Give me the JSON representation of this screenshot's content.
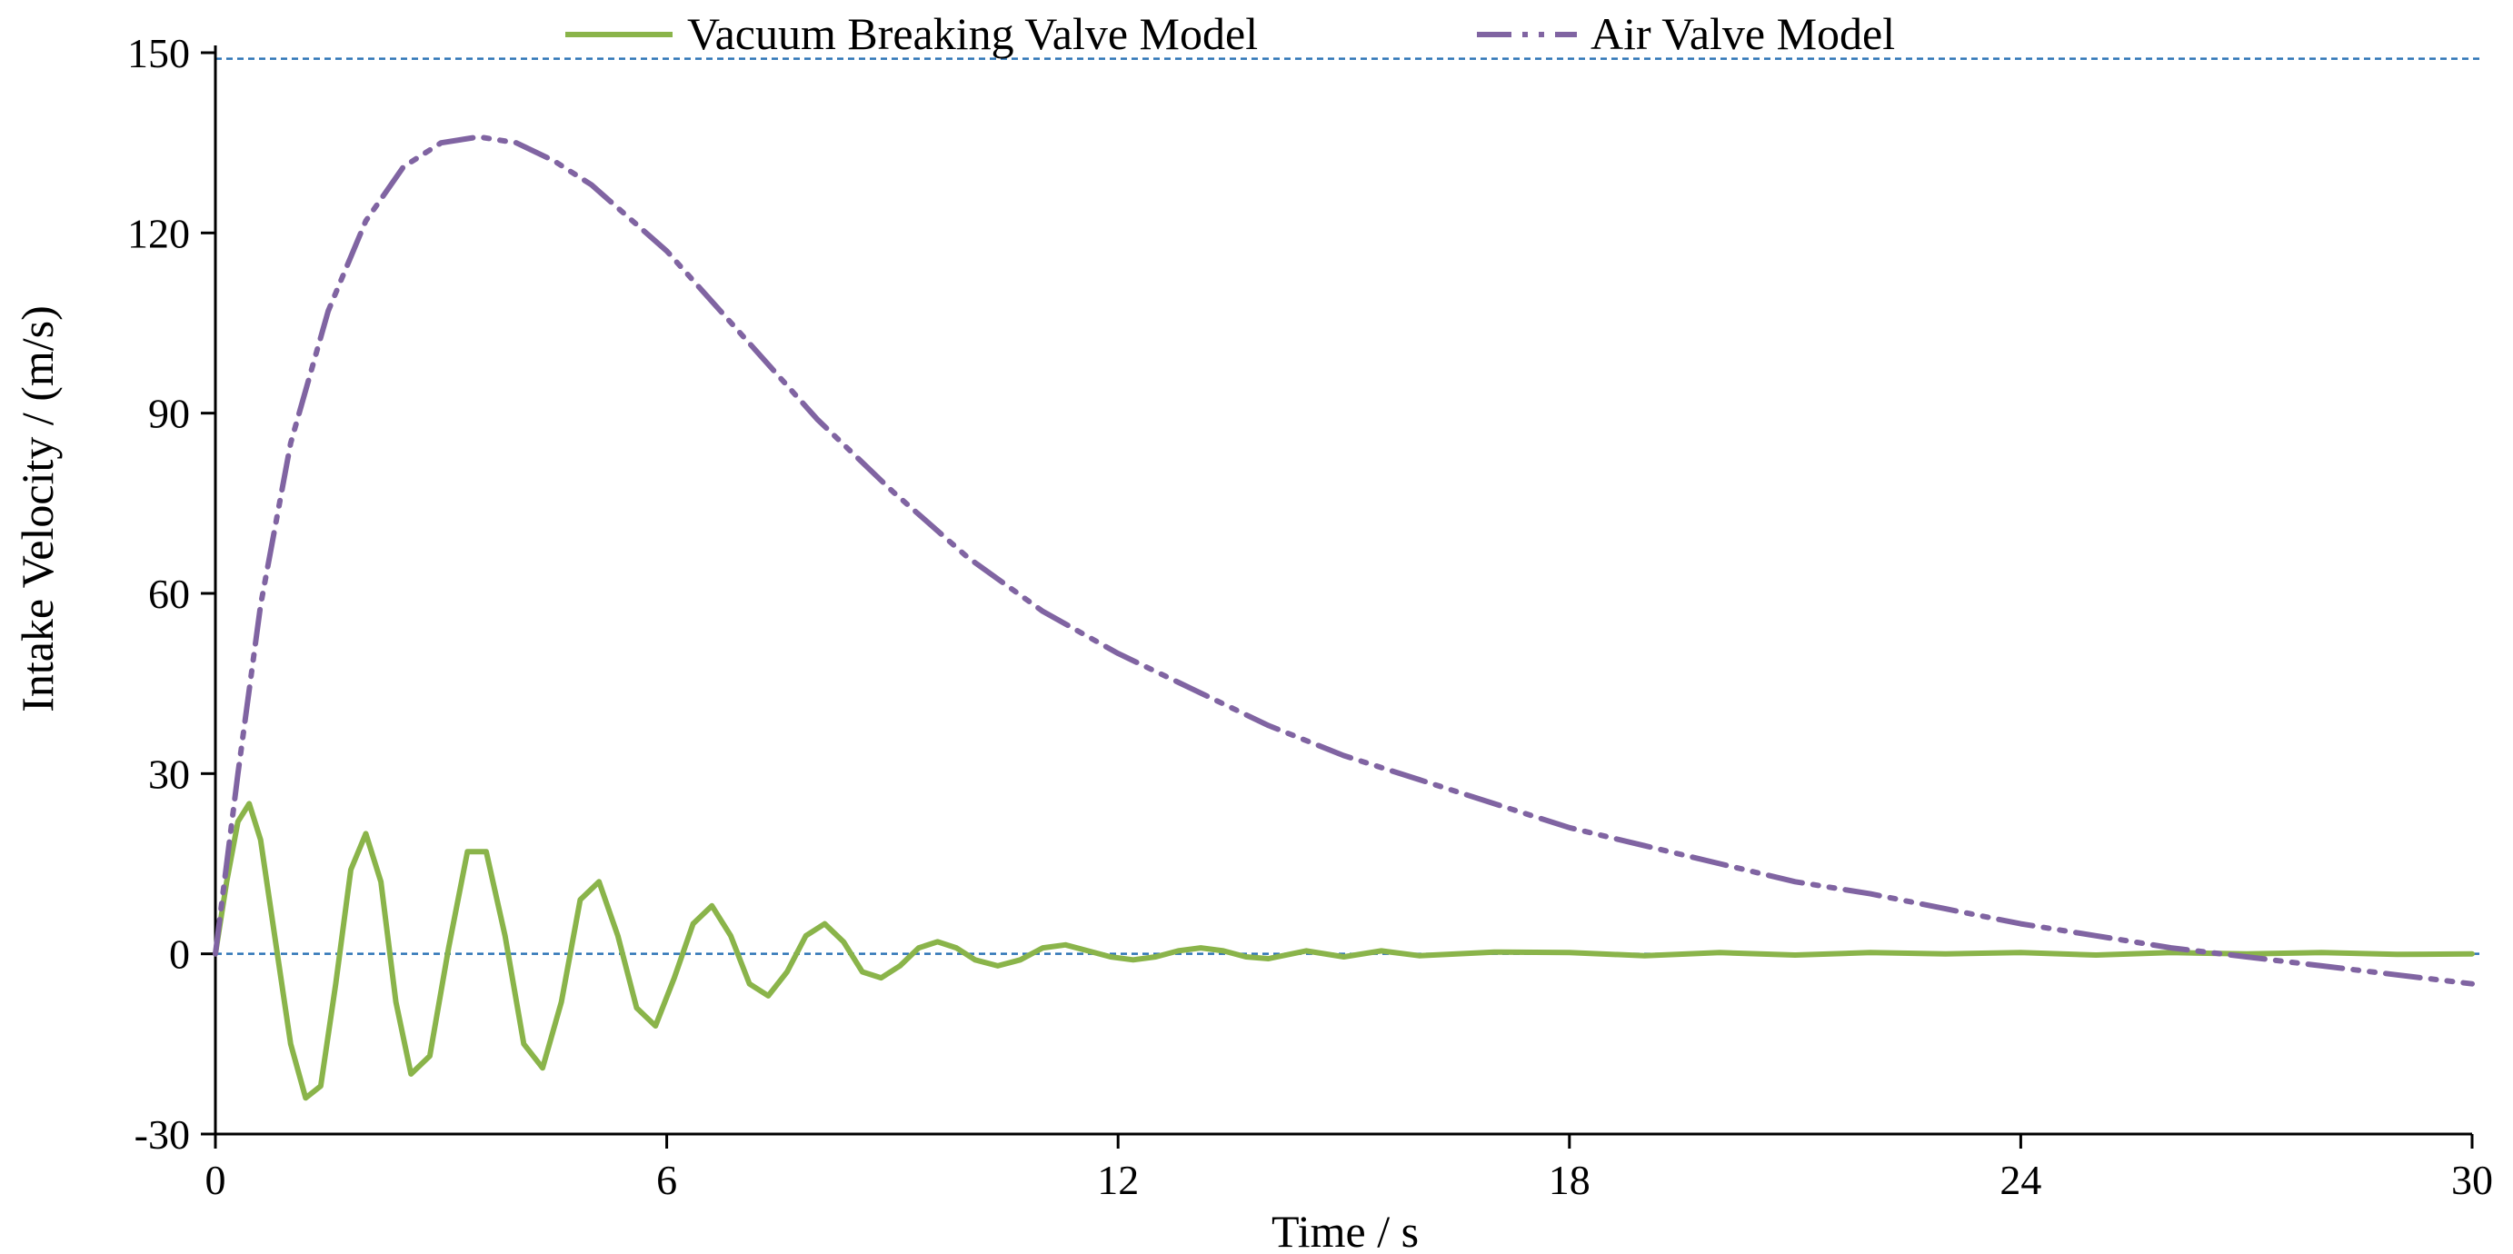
{
  "chart_data": {
    "type": "line",
    "title": "",
    "xlabel": "Time / s",
    "ylabel": "Intake Velocity / (m/s)",
    "xlim": [
      0,
      30
    ],
    "ylim": [
      -30,
      150
    ],
    "xticks": [
      0,
      6,
      12,
      18,
      24,
      30
    ],
    "yticks": [
      -30,
      0,
      30,
      60,
      90,
      120,
      150
    ],
    "xtick_labels": [
      "0",
      "6",
      "12",
      "18",
      "24",
      "30"
    ],
    "ytick_labels": [
      "-30",
      "0",
      "30",
      "60",
      "90",
      "120",
      "150"
    ],
    "reference_lines": [
      {
        "axis": "y",
        "value": 0,
        "style": "dashed",
        "color": "#2e75b6"
      },
      {
        "axis": "y",
        "value": 149,
        "style": "dashed",
        "color": "#2e75b6"
      }
    ],
    "legend_position": "top-center",
    "series": [
      {
        "name": "Vacuum Breaking Valve Model",
        "style": "solid",
        "color": "#8ab44a",
        "x": [
          0,
          0.15,
          0.3,
          0.45,
          0.6,
          0.8,
          1.0,
          1.2,
          1.4,
          1.6,
          1.8,
          2.0,
          2.2,
          2.4,
          2.6,
          2.85,
          3.1,
          3.35,
          3.6,
          3.85,
          4.1,
          4.35,
          4.6,
          4.85,
          5.1,
          5.35,
          5.6,
          5.85,
          6.1,
          6.35,
          6.6,
          6.85,
          7.1,
          7.35,
          7.6,
          7.85,
          8.1,
          8.35,
          8.6,
          8.85,
          9.1,
          9.35,
          9.6,
          9.85,
          10.1,
          10.4,
          10.7,
          11.0,
          11.3,
          11.6,
          11.9,
          12.2,
          12.5,
          12.8,
          13.1,
          13.4,
          13.7,
          14.0,
          14.5,
          15.0,
          15.5,
          16.0,
          17.0,
          18.0,
          19.0,
          20.0,
          21.0,
          22.0,
          23.0,
          24.0,
          25.0,
          26.0,
          27.0,
          28.0,
          29.0,
          30.0
        ],
        "y": [
          0,
          12,
          22,
          25,
          19,
          2,
          -15,
          -24,
          -22,
          -5,
          14,
          20,
          12,
          -8,
          -20,
          -17,
          1,
          17,
          17,
          3,
          -15,
          -19,
          -8,
          9,
          12,
          3,
          -9,
          -12,
          -4,
          5,
          8,
          3,
          -5,
          -7,
          -3,
          3,
          5,
          2,
          -3,
          -4,
          -2,
          1,
          2,
          1,
          -1,
          -2,
          -1,
          1,
          1.5,
          0.5,
          -0.5,
          -1,
          -0.5,
          0.5,
          1,
          0.5,
          -0.5,
          -0.8,
          0.5,
          -0.5,
          0.5,
          -0.3,
          0.3,
          0.2,
          -0.3,
          0.2,
          -0.2,
          0.2,
          0,
          0.2,
          -0.2,
          0.2,
          0,
          0.2,
          -0.1,
          0
        ]
      },
      {
        "name": "Air Valve Model",
        "style": "dash-dot-dot",
        "color": "#8064a2",
        "x": [
          0,
          0.3,
          0.6,
          1.0,
          1.5,
          2.0,
          2.5,
          3.0,
          3.5,
          4.0,
          4.5,
          5.0,
          6.0,
          7.0,
          8.0,
          9.0,
          10.0,
          11.0,
          12.0,
          13.0,
          14.0,
          15.0,
          16.0,
          17.0,
          18.0,
          19.0,
          20.0,
          21.0,
          22.0,
          23.0,
          24.0,
          25.0,
          26.0,
          27.0,
          28.0,
          29.0,
          30.0
        ],
        "y": [
          0,
          30,
          58,
          85,
          107,
          122,
          131,
          135,
          136,
          135,
          132,
          128,
          117,
          103,
          89,
          77,
          66,
          57,
          50,
          44,
          38,
          33,
          29,
          25,
          21,
          18,
          15,
          12,
          10,
          7.5,
          5,
          3,
          1,
          -0.5,
          -2,
          -3.5,
          -5
        ]
      }
    ]
  }
}
